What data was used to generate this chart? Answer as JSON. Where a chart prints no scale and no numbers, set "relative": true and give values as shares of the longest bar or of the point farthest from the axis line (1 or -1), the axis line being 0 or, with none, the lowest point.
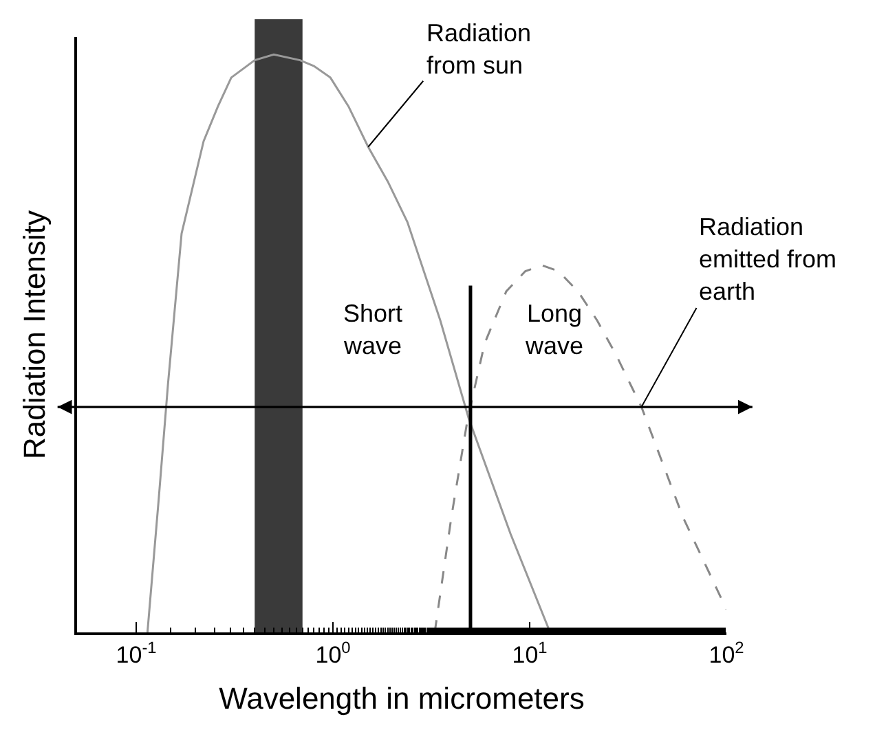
{
  "chart_data": {
    "type": "line",
    "relative": true,
    "xlabel": "Wavelength in micrometers",
    "ylabel": "Radiation Intensity",
    "log": "x",
    "grid": false,
    "marker": "none",
    "xlim": [
      0.05,
      100
    ],
    "xticks": [
      {
        "value": 0.1,
        "label": "10$^{-1}$"
      },
      {
        "value": 1,
        "label": "10$^{0}$"
      },
      {
        "value": 10,
        "label": "10$^{1}$"
      },
      {
        "value": 100,
        "label": "10$^{2}$"
      }
    ],
    "series": [
      {
        "color": "#999999",
        "line_style": "solid",
        "x": [
          0.114,
          0.13,
          0.145,
          0.17,
          0.22,
          0.26,
          0.304,
          0.4,
          0.5,
          0.68,
          0.8,
          0.97,
          1.2,
          1.51,
          1.9,
          2.39,
          3.51,
          4.9,
          8,
          12.7
        ],
        "values": [
          0,
          0.23,
          0.43,
          0.69,
          0.85,
          0.91,
          0.96,
          0.99,
          1.0,
          0.99,
          0.98,
          0.96,
          0.91,
          0.84,
          0.78,
          0.71,
          0.54,
          0.37,
          0.17,
          0
        ]
      },
      {
        "color": "#888888",
        "line_style": "dashed",
        "x": [
          3.29,
          4.0,
          4.84,
          5.9,
          7.6,
          9.5,
          11.6,
          14,
          17.6,
          22,
          27.5,
          37,
          60,
          100
        ],
        "values": [
          0,
          0.2,
          0.37,
          0.5,
          0.59,
          0.625,
          0.635,
          0.625,
          0.59,
          0.54,
          0.48,
          0.39,
          0.2,
          0.04
        ]
      },
      {
        "color": "#000000",
        "line_style": "solid",
        "x": [
          5,
          5
        ],
        "values": [
          0,
          0.6
        ]
      }
    ],
    "bands": [
      {
        "axis": "x",
        "from": 0.4,
        "to": 0.7,
        "color": "#3a3a3a"
      }
    ],
    "ref_lines": [
      {
        "axis": "y",
        "value": 0.39,
        "color": "#000000",
        "line_style": "solid"
      }
    ],
    "annotations": [
      {
        "text": "Radiation\nfrom sun",
        "x": 1.51,
        "y": 0.84
      },
      {
        "text": "Radiation\nemitted from\nearth",
        "x": 37,
        "y": 0.39
      },
      "Short\nwave",
      "Long\nwave"
    ]
  }
}
